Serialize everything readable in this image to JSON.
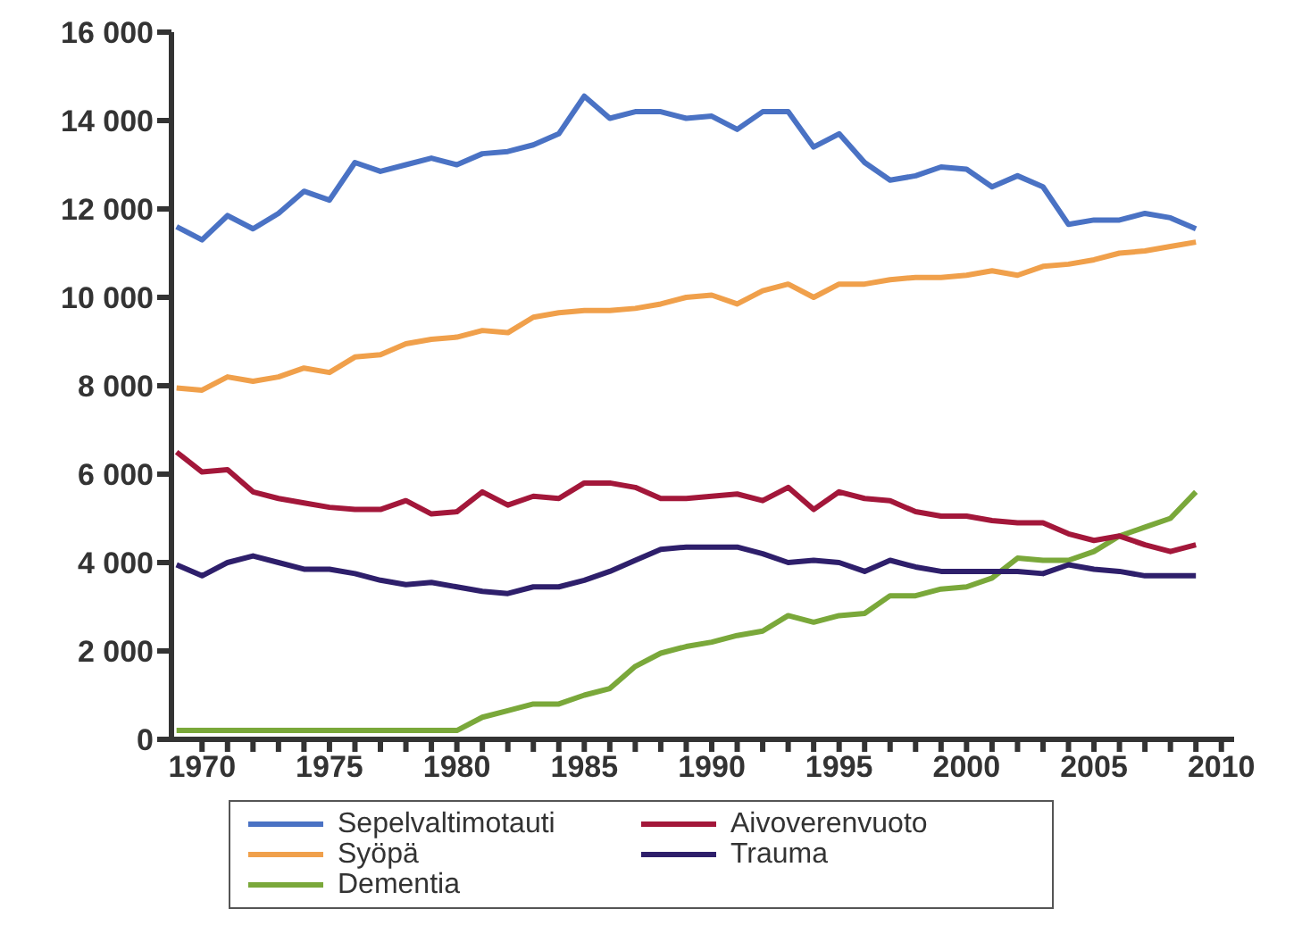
{
  "chart_data": {
    "type": "line",
    "x": [
      1969,
      1970,
      1971,
      1972,
      1973,
      1974,
      1975,
      1976,
      1977,
      1978,
      1979,
      1980,
      1981,
      1982,
      1983,
      1984,
      1985,
      1986,
      1987,
      1988,
      1989,
      1990,
      1991,
      1992,
      1993,
      1994,
      1995,
      1996,
      1997,
      1998,
      1999,
      2000,
      2001,
      2002,
      2003,
      2004,
      2005,
      2006,
      2007,
      2008,
      2009
    ],
    "series": [
      {
        "name": "Sepelvaltimotauti",
        "color": "#4a72c4",
        "values": [
          11600,
          11300,
          11850,
          11550,
          11900,
          12400,
          12200,
          13050,
          12850,
          13000,
          13150,
          13000,
          13250,
          13300,
          13450,
          13700,
          14550,
          14050,
          14200,
          14200,
          14050,
          14100,
          13800,
          14200,
          14200,
          13400,
          13700,
          13050,
          12650,
          12750,
          12950,
          12900,
          12500,
          12750,
          12500,
          11650,
          11750,
          11750,
          11900,
          11800,
          11550
        ]
      },
      {
        "name": "Syöpä",
        "color": "#f0a04b",
        "values": [
          7950,
          7900,
          8200,
          8100,
          8200,
          8400,
          8300,
          8650,
          8700,
          8950,
          9050,
          9100,
          9250,
          9200,
          9550,
          9650,
          9700,
          9700,
          9750,
          9850,
          10000,
          10050,
          9850,
          10150,
          10300,
          10000,
          10300,
          10300,
          10400,
          10450,
          10450,
          10500,
          10600,
          10500,
          10700,
          10750,
          10850,
          11000,
          11050,
          11150,
          11250
        ]
      },
      {
        "name": "Dementia",
        "color": "#7aa83a",
        "values": [
          200,
          200,
          200,
          200,
          200,
          200,
          200,
          200,
          200,
          200,
          200,
          200,
          500,
          650,
          800,
          800,
          1000,
          1150,
          1650,
          1950,
          2100,
          2200,
          2350,
          2450,
          2800,
          2650,
          2800,
          2850,
          3250,
          3250,
          3400,
          3450,
          3650,
          4100,
          4050,
          4050,
          4250,
          4600,
          4800,
          5000,
          5600
        ]
      },
      {
        "name": "Aivoverenvuoto",
        "color": "#a3173a",
        "values": [
          6500,
          6050,
          6100,
          5600,
          5450,
          5350,
          5250,
          5200,
          5200,
          5400,
          5100,
          5150,
          5600,
          5300,
          5500,
          5450,
          5800,
          5800,
          5700,
          5450,
          5450,
          5500,
          5550,
          5400,
          5700,
          5200,
          5600,
          5450,
          5400,
          5150,
          5050,
          5050,
          4950,
          4900,
          4900,
          4650,
          4500,
          4600,
          4400,
          4250,
          4400
        ]
      },
      {
        "name": "Trauma",
        "color": "#2e1f6b",
        "values": [
          3950,
          3700,
          4000,
          4150,
          4000,
          3850,
          3850,
          3750,
          3600,
          3500,
          3550,
          3450,
          3350,
          3300,
          3450,
          3450,
          3600,
          3800,
          4050,
          4300,
          4350,
          4350,
          4350,
          4200,
          4000,
          4050,
          4000,
          3800,
          4050,
          3900,
          3800,
          3800,
          3800,
          3800,
          3750,
          3950,
          3850,
          3800,
          3700,
          3700,
          3700
        ]
      }
    ],
    "xlim": [
      1968.8,
      2010.5
    ],
    "xticks": [
      1970,
      {
        "value": 1971,
        "label": null
      },
      {
        "value": 1972,
        "label": null
      },
      {
        "value": 1973,
        "label": null
      },
      {
        "value": 1974,
        "label": null
      },
      1975,
      {
        "value": 1976,
        "label": null
      },
      {
        "value": 1977,
        "label": null
      },
      {
        "value": 1978,
        "label": null
      },
      {
        "value": 1979,
        "label": null
      },
      1980,
      {
        "value": 1981,
        "label": null
      },
      {
        "value": 1982,
        "label": null
      },
      {
        "value": 1983,
        "label": null
      },
      {
        "value": 1984,
        "label": null
      },
      1985,
      {
        "value": 1986,
        "label": null
      },
      {
        "value": 1987,
        "label": null
      },
      {
        "value": 1988,
        "label": null
      },
      {
        "value": 1989,
        "label": null
      },
      1990,
      {
        "value": 1991,
        "label": null
      },
      {
        "value": 1992,
        "label": null
      },
      {
        "value": 1993,
        "label": null
      },
      {
        "value": 1994,
        "label": null
      },
      1995,
      {
        "value": 1996,
        "label": null
      },
      {
        "value": 1997,
        "label": null
      },
      {
        "value": 1998,
        "label": null
      },
      {
        "value": 1999,
        "label": null
      },
      2000,
      {
        "value": 2001,
        "label": null
      },
      {
        "value": 2002,
        "label": null
      },
      {
        "value": 2003,
        "label": null
      },
      {
        "value": 2004,
        "label": null
      },
      2005,
      {
        "value": 2006,
        "label": null
      },
      {
        "value": 2007,
        "label": null
      },
      {
        "value": 2008,
        "label": null
      },
      {
        "value": 2009,
        "label": null
      },
      2010
    ],
    "ylim": [
      0,
      16000
    ],
    "yticks": [
      0,
      {
        "value": 2000,
        "label": "2 000"
      },
      {
        "value": 4000,
        "label": "4 000"
      },
      {
        "value": 6000,
        "label": "6 000"
      },
      {
        "value": 8000,
        "label": "8 000"
      },
      {
        "value": 10000,
        "label": "10 000"
      },
      {
        "value": 12000,
        "label": "12 000"
      },
      {
        "value": 14000,
        "label": "14 000"
      },
      {
        "value": 16000,
        "label": "16 000"
      }
    ],
    "grid": false,
    "legend": "bottom",
    "marker": "none",
    "line_style": "solid"
  }
}
